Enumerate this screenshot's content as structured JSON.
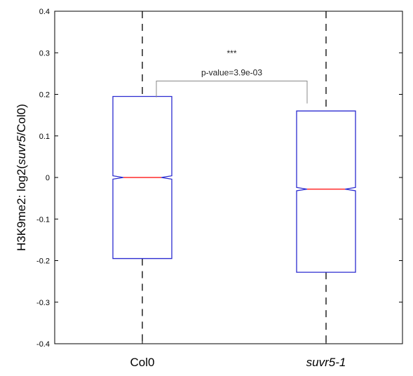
{
  "chart_data": {
    "type": "boxplot",
    "notched": true,
    "categories": [
      "Col0",
      "suvr5-1"
    ],
    "category_italic": [
      false,
      true
    ],
    "ylabel": {
      "prefix": "H3K9me2: log2(",
      "italic": "suvr5",
      "suffix": "/Col0)"
    },
    "ylim": [
      -0.4,
      0.4
    ],
    "yticks": [
      -0.4,
      -0.3,
      -0.2,
      -0.1,
      0,
      0.1,
      0.2,
      0.3,
      0.4
    ],
    "ytick_labels": [
      "-0.4",
      "-0.3",
      "-0.2",
      "-0.1",
      "0",
      "0.1",
      "0.2",
      "0.3",
      "0.4"
    ],
    "boxes": [
      {
        "name": "Col0",
        "q1": -0.195,
        "median": 0.0,
        "q3": 0.195,
        "whisker_low": -0.4,
        "whisker_high": 0.4,
        "notch_low": -0.004,
        "notch_high": 0.004
      },
      {
        "name": "suvr5-1",
        "q1": -0.228,
        "median": -0.028,
        "q3": 0.16,
        "whisker_low": -0.4,
        "whisker_high": 0.4,
        "notch_low": -0.032,
        "notch_high": -0.024
      }
    ],
    "annotation": {
      "significance": "***",
      "pvalue_text": "p-value=3.9e-03",
      "bracket_left_y": 0.193,
      "bracket_right_y": 0.178,
      "bracket_top_y": 0.232
    },
    "colors": {
      "box": "#2b2bd0",
      "median": "#ff2a2a",
      "whisker": "#000000",
      "bracket": "#888888",
      "axis": "#000000"
    },
    "grid": false
  }
}
